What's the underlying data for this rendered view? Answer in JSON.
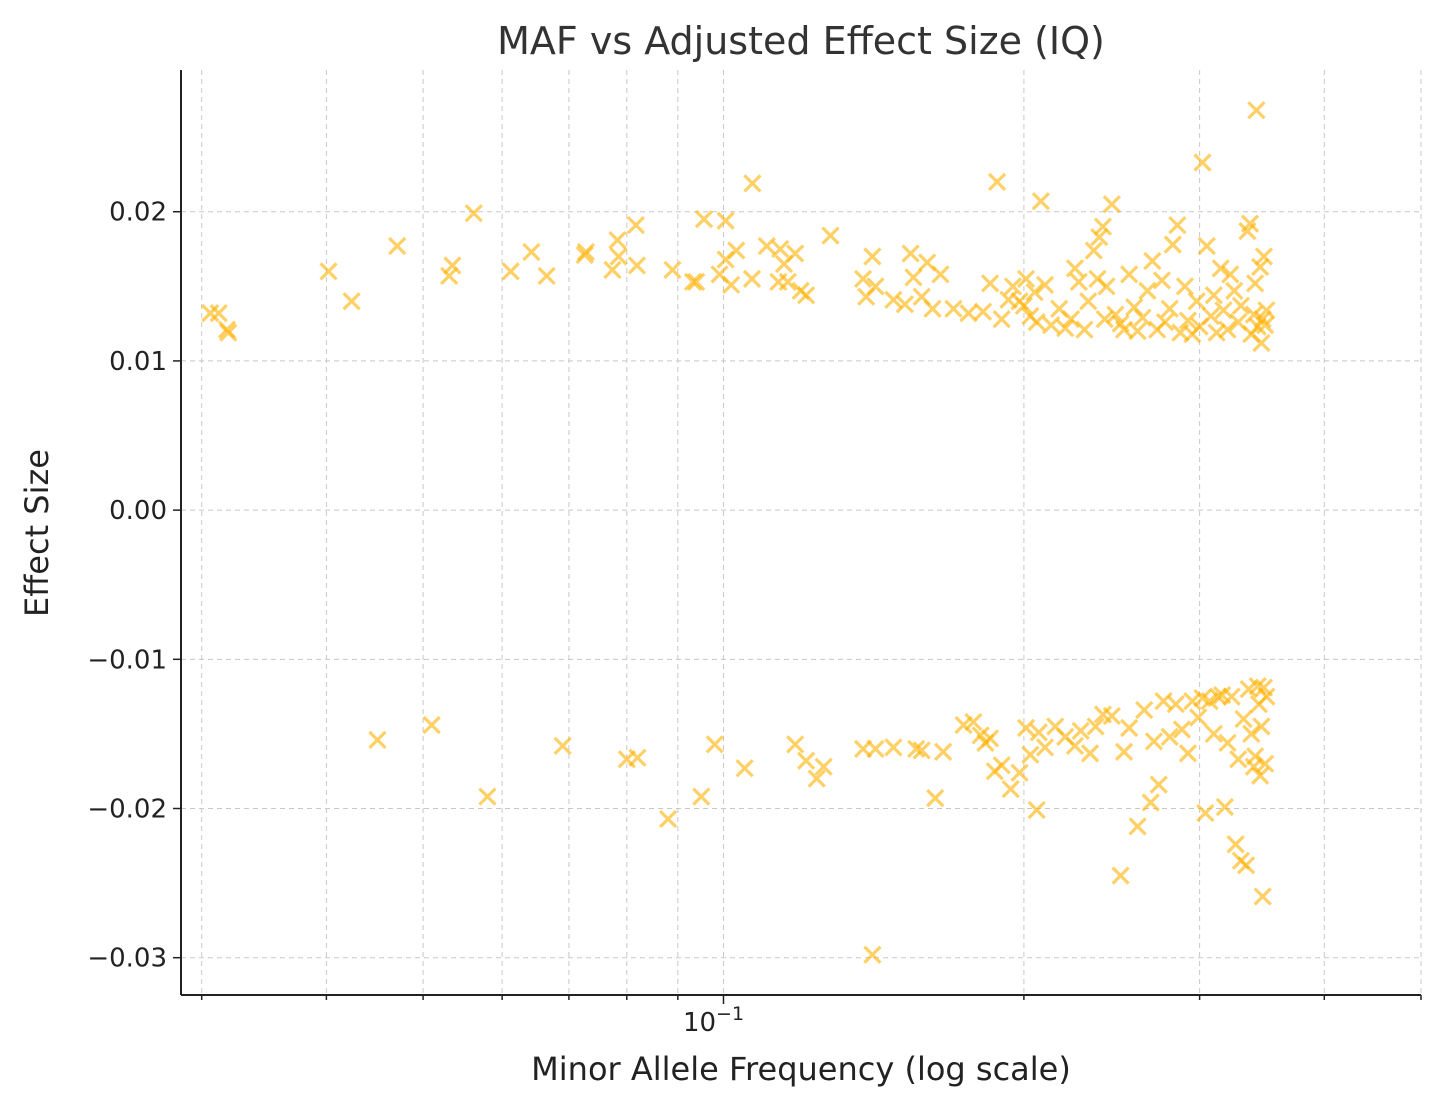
{
  "chart_data": {
    "type": "scatter",
    "title": "MAF vs Adjusted Effect Size (IQ)",
    "xlabel": "Minor Allele Frequency (log scale)",
    "ylabel": "Effect Size",
    "xscale": "log",
    "xlim": [
      0.0286,
      0.5
    ],
    "ylim": [
      -0.0325,
      0.0295
    ],
    "x_ticks": [
      {
        "value": 0.1,
        "base": "10",
        "exp": "−1"
      }
    ],
    "y_ticks": [
      {
        "value": 0.02,
        "label": "0.02"
      },
      {
        "value": 0.01,
        "label": "0.01"
      },
      {
        "value": 0.0,
        "label": "0.00"
      },
      {
        "value": -0.01,
        "label": "−0.01"
      },
      {
        "value": -0.02,
        "label": "−0.02"
      },
      {
        "value": -0.03,
        "label": "−0.03"
      }
    ],
    "grid": true,
    "marker": "x",
    "color": "#FFB000",
    "points": [
      [
        0.0306,
        0.0132
      ],
      [
        0.0312,
        0.0132
      ],
      [
        0.0318,
        0.0121
      ],
      [
        0.0319,
        0.0119
      ],
      [
        0.0402,
        0.016
      ],
      [
        0.0424,
        0.014
      ],
      [
        0.0471,
        0.0177
      ],
      [
        0.0531,
        0.0157
      ],
      [
        0.0535,
        0.0164
      ],
      [
        0.0562,
        0.0199
      ],
      [
        0.0612,
        0.016
      ],
      [
        0.0642,
        0.0173
      ],
      [
        0.0665,
        0.0157
      ],
      [
        0.0726,
        0.0171
      ],
      [
        0.0728,
        0.0173
      ],
      [
        0.0774,
        0.0161
      ],
      [
        0.0783,
        0.0181
      ],
      [
        0.0785,
        0.017
      ],
      [
        0.0817,
        0.0191
      ],
      [
        0.0819,
        0.0164
      ],
      [
        0.0889,
        0.0161
      ],
      [
        0.0956,
        0.0195
      ],
      [
        0.0932,
        0.0153
      ],
      [
        0.0939,
        0.0153
      ],
      [
        0.0991,
        0.0158
      ],
      [
        0.1005,
        0.0194
      ],
      [
        0.1005,
        0.0168
      ],
      [
        0.1018,
        0.0151
      ],
      [
        0.103,
        0.0174
      ],
      [
        0.1069,
        0.0219
      ],
      [
        0.1068,
        0.0155
      ],
      [
        0.1105,
        0.0177
      ],
      [
        0.114,
        0.0175
      ],
      [
        0.1135,
        0.0153
      ],
      [
        0.115,
        0.0165
      ],
      [
        0.116,
        0.0153
      ],
      [
        0.118,
        0.0172
      ],
      [
        0.1195,
        0.0147
      ],
      [
        0.121,
        0.0144
      ],
      [
        0.128,
        0.0184
      ],
      [
        0.138,
        0.0155
      ],
      [
        0.139,
        0.0143
      ],
      [
        0.141,
        0.017
      ],
      [
        0.142,
        0.015
      ],
      [
        0.148,
        0.0141
      ],
      [
        0.152,
        0.0138
      ],
      [
        0.154,
        0.0172
      ],
      [
        0.155,
        0.0156
      ],
      [
        0.158,
        0.0143
      ],
      [
        0.16,
        0.0166
      ],
      [
        0.162,
        0.0135
      ],
      [
        0.165,
        0.0158
      ],
      [
        0.17,
        0.0135
      ],
      [
        0.176,
        0.0132
      ],
      [
        0.182,
        0.0133
      ],
      [
        0.185,
        0.0152
      ],
      [
        0.188,
        0.022
      ],
      [
        0.19,
        0.0128
      ],
      [
        0.193,
        0.0141
      ],
      [
        0.195,
        0.015
      ],
      [
        0.198,
        0.014
      ],
      [
        0.2,
        0.0137
      ],
      [
        0.201,
        0.0155
      ],
      [
        0.203,
        0.013
      ],
      [
        0.205,
        0.0146
      ],
      [
        0.206,
        0.0126
      ],
      [
        0.208,
        0.0207
      ],
      [
        0.21,
        0.0151
      ],
      [
        0.213,
        0.0124
      ],
      [
        0.217,
        0.0135
      ],
      [
        0.22,
        0.0122
      ],
      [
        0.223,
        0.0128
      ],
      [
        0.225,
        0.0162
      ],
      [
        0.227,
        0.0153
      ],
      [
        0.23,
        0.0121
      ],
      [
        0.232,
        0.014
      ],
      [
        0.235,
        0.0174
      ],
      [
        0.237,
        0.0155
      ],
      [
        0.238,
        0.0183
      ],
      [
        0.24,
        0.019
      ],
      [
        0.241,
        0.0128
      ],
      [
        0.242,
        0.015
      ],
      [
        0.245,
        0.0205
      ],
      [
        0.247,
        0.0131
      ],
      [
        0.25,
        0.0125
      ],
      [
        0.252,
        0.0121
      ],
      [
        0.255,
        0.0158
      ],
      [
        0.258,
        0.0136
      ],
      [
        0.26,
        0.012
      ],
      [
        0.263,
        0.0129
      ],
      [
        0.266,
        0.0147
      ],
      [
        0.269,
        0.0167
      ],
      [
        0.272,
        0.0121
      ],
      [
        0.275,
        0.0154
      ],
      [
        0.277,
        0.0126
      ],
      [
        0.28,
        0.0135
      ],
      [
        0.282,
        0.0178
      ],
      [
        0.285,
        0.0191
      ],
      [
        0.287,
        0.0119
      ],
      [
        0.29,
        0.015
      ],
      [
        0.292,
        0.0127
      ],
      [
        0.295,
        0.0118
      ],
      [
        0.298,
        0.014
      ],
      [
        0.3,
        0.0123
      ],
      [
        0.302,
        0.0233
      ],
      [
        0.305,
        0.0177
      ],
      [
        0.308,
        0.013
      ],
      [
        0.31,
        0.0144
      ],
      [
        0.312,
        0.0119
      ],
      [
        0.315,
        0.0162
      ],
      [
        0.317,
        0.0134
      ],
      [
        0.32,
        0.0121
      ],
      [
        0.322,
        0.0158
      ],
      [
        0.325,
        0.0147
      ],
      [
        0.328,
        0.0126
      ],
      [
        0.33,
        0.0137
      ],
      [
        0.335,
        0.0187
      ],
      [
        0.337,
        0.0192
      ],
      [
        0.338,
        0.0118
      ],
      [
        0.34,
        0.0131
      ],
      [
        0.341,
        0.0152
      ],
      [
        0.342,
        0.0268
      ],
      [
        0.343,
        0.0123
      ],
      [
        0.345,
        0.0163
      ],
      [
        0.346,
        0.0112
      ],
      [
        0.347,
        0.0128
      ],
      [
        0.348,
        0.017
      ],
      [
        0.349,
        0.0124
      ],
      [
        0.35,
        0.0134
      ],
      [
        0.045,
        -0.0154
      ],
      [
        0.051,
        -0.0144
      ],
      [
        0.058,
        -0.0192
      ],
      [
        0.069,
        -0.0158
      ],
      [
        0.08,
        -0.0167
      ],
      [
        0.082,
        -0.0166
      ],
      [
        0.088,
        -0.0207
      ],
      [
        0.095,
        -0.0192
      ],
      [
        0.098,
        -0.0157
      ],
      [
        0.105,
        -0.0173
      ],
      [
        0.118,
        -0.0157
      ],
      [
        0.121,
        -0.0168
      ],
      [
        0.124,
        -0.018
      ],
      [
        0.126,
        -0.0172
      ],
      [
        0.138,
        -0.016
      ],
      [
        0.141,
        -0.0298
      ],
      [
        0.142,
        -0.016
      ],
      [
        0.148,
        -0.0159
      ],
      [
        0.156,
        -0.016
      ],
      [
        0.158,
        -0.0161
      ],
      [
        0.163,
        -0.0193
      ],
      [
        0.166,
        -0.0162
      ],
      [
        0.174,
        -0.0144
      ],
      [
        0.178,
        -0.0142
      ],
      [
        0.181,
        -0.0151
      ],
      [
        0.183,
        -0.0156
      ],
      [
        0.185,
        -0.0153
      ],
      [
        0.187,
        -0.0175
      ],
      [
        0.19,
        -0.0171
      ],
      [
        0.194,
        -0.0187
      ],
      [
        0.198,
        -0.0176
      ],
      [
        0.201,
        -0.0146
      ],
      [
        0.203,
        -0.0164
      ],
      [
        0.206,
        -0.0201
      ],
      [
        0.207,
        -0.0149
      ],
      [
        0.21,
        -0.0159
      ],
      [
        0.215,
        -0.0145
      ],
      [
        0.22,
        -0.0152
      ],
      [
        0.225,
        -0.0158
      ],
      [
        0.228,
        -0.0148
      ],
      [
        0.233,
        -0.0163
      ],
      [
        0.236,
        -0.0145
      ],
      [
        0.24,
        -0.0137
      ],
      [
        0.245,
        -0.0138
      ],
      [
        0.25,
        -0.0245
      ],
      [
        0.252,
        -0.0162
      ],
      [
        0.255,
        -0.0146
      ],
      [
        0.26,
        -0.0212
      ],
      [
        0.264,
        -0.0134
      ],
      [
        0.268,
        -0.0196
      ],
      [
        0.27,
        -0.0155
      ],
      [
        0.273,
        -0.0184
      ],
      [
        0.276,
        -0.0128
      ],
      [
        0.28,
        -0.0152
      ],
      [
        0.284,
        -0.013
      ],
      [
        0.288,
        -0.0147
      ],
      [
        0.292,
        -0.0163
      ],
      [
        0.295,
        -0.0128
      ],
      [
        0.299,
        -0.0139
      ],
      [
        0.302,
        -0.0126
      ],
      [
        0.304,
        -0.0203
      ],
      [
        0.307,
        -0.0128
      ],
      [
        0.31,
        -0.015
      ],
      [
        0.313,
        -0.0125
      ],
      [
        0.316,
        -0.0124
      ],
      [
        0.318,
        -0.0199
      ],
      [
        0.32,
        -0.0156
      ],
      [
        0.323,
        -0.0125
      ],
      [
        0.326,
        -0.0224
      ],
      [
        0.328,
        -0.0167
      ],
      [
        0.33,
        -0.0235
      ],
      [
        0.332,
        -0.014
      ],
      [
        0.334,
        -0.0238
      ],
      [
        0.336,
        -0.012
      ],
      [
        0.338,
        -0.015
      ],
      [
        0.34,
        -0.0172
      ],
      [
        0.341,
        -0.0165
      ],
      [
        0.343,
        -0.0118
      ],
      [
        0.344,
        -0.013
      ],
      [
        0.345,
        -0.0178
      ],
      [
        0.346,
        -0.0145
      ],
      [
        0.347,
        -0.0259
      ],
      [
        0.348,
        -0.0119
      ],
      [
        0.349,
        -0.017
      ],
      [
        0.35,
        -0.0125
      ]
    ]
  }
}
